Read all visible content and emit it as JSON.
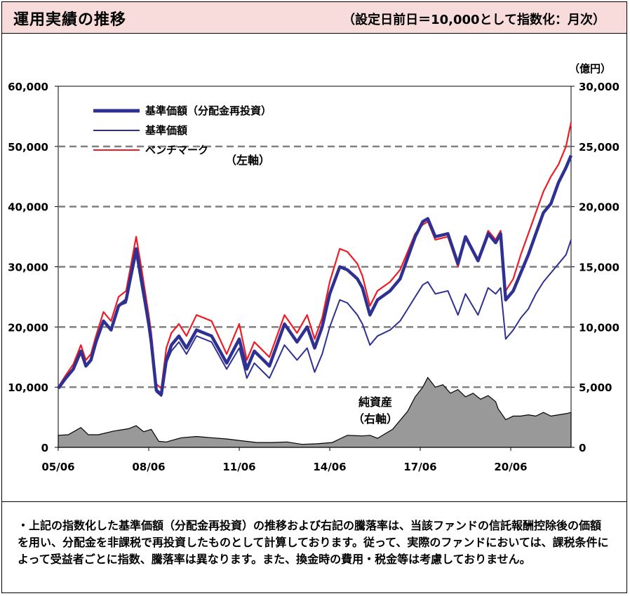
{
  "header": {
    "title": "運用実績の推移",
    "subtitle": "（設定日前日＝10,000として指数化：月次）"
  },
  "notes": {
    "text": "・上記の指数化した基準価額（分配金再投資）の推移および右記の騰落率は、当該ファンドの信託報酬控除後の価額を用い、分配金を非課税で再投資したものとして計算しております。従って、実際のファンドにおいては、課税条件によって受益者ごとに指数、騰落率は異なります。また、換金時の費用・税金等は考慮しておりません。"
  },
  "chart_data": {
    "type": "line",
    "title": "",
    "x_ticks": [
      "05/06",
      "08/06",
      "11/06",
      "14/06",
      "17/06",
      "20/06"
    ],
    "x_range": [
      2005.417,
      2022.417
    ],
    "left_axis": {
      "ylim": [
        0,
        60000
      ],
      "ticks": [
        "0",
        "10,000",
        "20,000",
        "30,000",
        "40,000",
        "50,000",
        "60,000"
      ],
      "annotation": "（左軸）"
    },
    "right_axis": {
      "unit": "（億円）",
      "ylim": [
        0,
        30000
      ],
      "ticks": [
        "0",
        "5,000",
        "10,000",
        "15,000",
        "20,000",
        "25,000",
        "30,000"
      ],
      "annotation_line1": "純資産",
      "annotation_line2": "（右軸）"
    },
    "gridlines": [
      10000,
      20000,
      30000,
      40000,
      50000
    ],
    "legend": {
      "placement": "top-left",
      "entries": [
        "基準価額（分配金再投資）",
        "基準価額",
        "ベンチマーク"
      ]
    },
    "colors": {
      "nav_reinvested": "#2e3192",
      "nav": "#2e3192",
      "benchmark": "#ee1c25",
      "net_assets_fill": "#999999"
    },
    "series": [
      {
        "name": "基準価額（分配金再投資）",
        "axis": "left",
        "x": [
          2005.417,
          2005.667,
          2005.917,
          2006.167,
          2006.333,
          2006.5,
          2006.667,
          2006.917,
          2007.167,
          2007.417,
          2007.667,
          2008.0,
          2008.167,
          2008.417,
          2008.5,
          2008.667,
          2008.833,
          2009.0,
          2009.167,
          2009.417,
          2009.667,
          2010.0,
          2010.5,
          2011.0,
          2011.417,
          2011.667,
          2011.917,
          2012.417,
          2012.917,
          2013.333,
          2013.667,
          2013.917,
          2014.167,
          2014.417,
          2014.75,
          2015.0,
          2015.333,
          2015.5,
          2015.75,
          2016.0,
          2016.417,
          2016.75,
          2017.0,
          2017.25,
          2017.5,
          2017.667,
          2017.917,
          2018.333,
          2018.667,
          2018.917,
          2019.333,
          2019.667,
          2019.917,
          2020.083,
          2020.25,
          2020.5,
          2020.75,
          2021.0,
          2021.25,
          2021.5,
          2021.75,
          2022.0,
          2022.25,
          2022.417
        ],
        "values": [
          9800,
          11500,
          13000,
          16000,
          13500,
          14500,
          17500,
          21000,
          19500,
          23500,
          24500,
          33000,
          28000,
          20500,
          17500,
          9500,
          8800,
          14500,
          17000,
          18500,
          16500,
          19500,
          18500,
          14000,
          18000,
          13000,
          16000,
          13500,
          20500,
          17500,
          20000,
          16500,
          20000,
          25500,
          30000,
          29500,
          28000,
          26500,
          22000,
          24500,
          26000,
          28000,
          31500,
          35000,
          37500,
          38000,
          35000,
          35500,
          30500,
          35000,
          31000,
          35500,
          34000,
          35500,
          24500,
          26000,
          29000,
          32000,
          35500,
          39000,
          40500,
          44000,
          46500,
          48500
        ]
      },
      {
        "name": "基準価額",
        "axis": "left",
        "x": [
          2005.417,
          2005.667,
          2005.917,
          2006.167,
          2006.333,
          2006.5,
          2006.667,
          2006.917,
          2007.167,
          2007.417,
          2007.667,
          2008.0,
          2008.167,
          2008.417,
          2008.5,
          2008.667,
          2008.833,
          2009.0,
          2009.167,
          2009.417,
          2009.667,
          2010.0,
          2010.5,
          2011.0,
          2011.417,
          2011.667,
          2011.917,
          2012.417,
          2012.917,
          2013.333,
          2013.667,
          2013.917,
          2014.167,
          2014.417,
          2014.75,
          2015.0,
          2015.333,
          2015.5,
          2015.75,
          2016.0,
          2016.417,
          2016.75,
          2017.0,
          2017.25,
          2017.5,
          2017.667,
          2017.917,
          2018.333,
          2018.667,
          2018.917,
          2019.333,
          2019.667,
          2019.917,
          2020.083,
          2020.25,
          2020.5,
          2020.75,
          2021.0,
          2021.25,
          2021.5,
          2021.75,
          2022.0,
          2022.25,
          2022.417
        ],
        "values": [
          9800,
          11500,
          13000,
          16000,
          13500,
          14500,
          17500,
          21000,
          19500,
          23500,
          24000,
          32000,
          27000,
          20000,
          17000,
          9200,
          8500,
          14000,
          16000,
          17500,
          15500,
          18500,
          17500,
          13000,
          16500,
          11500,
          14000,
          11500,
          17000,
          14500,
          16500,
          12500,
          15500,
          20000,
          24500,
          24000,
          22000,
          20500,
          17000,
          18500,
          19500,
          21000,
          23000,
          25000,
          27000,
          27500,
          25500,
          26000,
          22000,
          25500,
          22000,
          26500,
          25500,
          26500,
          18000,
          19500,
          21500,
          23000,
          25500,
          27500,
          29000,
          30500,
          32000,
          34500
        ]
      },
      {
        "name": "ベンチマーク",
        "axis": "left",
        "x": [
          2005.417,
          2005.667,
          2005.917,
          2006.167,
          2006.333,
          2006.5,
          2006.667,
          2006.917,
          2007.167,
          2007.417,
          2007.667,
          2008.0,
          2008.167,
          2008.417,
          2008.5,
          2008.667,
          2008.833,
          2009.0,
          2009.167,
          2009.417,
          2009.667,
          2010.0,
          2010.5,
          2011.0,
          2011.417,
          2011.667,
          2011.917,
          2012.417,
          2012.917,
          2013.333,
          2013.667,
          2013.917,
          2014.167,
          2014.417,
          2014.75,
          2015.0,
          2015.333,
          2015.5,
          2015.75,
          2016.0,
          2016.417,
          2016.75,
          2017.0,
          2017.25,
          2017.5,
          2017.667,
          2017.917,
          2018.333,
          2018.667,
          2018.917,
          2019.333,
          2019.667,
          2019.917,
          2020.083,
          2020.25,
          2020.5,
          2020.75,
          2021.0,
          2021.25,
          2021.5,
          2021.75,
          2022.0,
          2022.25,
          2022.417
        ],
        "values": [
          10000,
          12000,
          13800,
          17000,
          14500,
          15500,
          18500,
          22500,
          21000,
          25000,
          26000,
          35000,
          30000,
          22000,
          19000,
          10500,
          9800,
          16500,
          19000,
          20500,
          18500,
          22000,
          21000,
          15500,
          20500,
          14500,
          17500,
          15000,
          22000,
          19000,
          22000,
          18000,
          21500,
          27500,
          33000,
          32500,
          30500,
          28500,
          23500,
          26000,
          27500,
          29500,
          32500,
          35500,
          37000,
          37500,
          34500,
          35000,
          30000,
          35000,
          31000,
          36000,
          34500,
          36000,
          26000,
          28000,
          32000,
          35500,
          39000,
          42500,
          45000,
          47000,
          50000,
          54000
        ]
      },
      {
        "name": "純資産",
        "axis": "right",
        "x": [
          2005.417,
          2005.75,
          2006.167,
          2006.417,
          2006.75,
          2007.25,
          2007.75,
          2008.0,
          2008.25,
          2008.5,
          2008.75,
          2009.0,
          2009.5,
          2010.0,
          2010.5,
          2011.0,
          2011.5,
          2012.0,
          2012.5,
          2013.0,
          2013.5,
          2014.0,
          2014.5,
          2014.75,
          2015.0,
          2015.5,
          2015.75,
          2016.0,
          2016.5,
          2017.0,
          2017.25,
          2017.5,
          2017.667,
          2017.917,
          2018.167,
          2018.417,
          2018.667,
          2018.917,
          2019.167,
          2019.417,
          2019.667,
          2019.917,
          2020.0,
          2020.25,
          2020.5,
          2020.75,
          2021.0,
          2021.25,
          2021.5,
          2021.75,
          2022.0,
          2022.25,
          2022.417
        ],
        "values": [
          1000,
          1050,
          1650,
          1050,
          1050,
          1350,
          1550,
          1800,
          1300,
          1500,
          500,
          450,
          800,
          900,
          800,
          700,
          550,
          400,
          400,
          450,
          250,
          300,
          400,
          700,
          1000,
          950,
          1000,
          750,
          1500,
          3000,
          4200,
          5000,
          5800,
          5000,
          5200,
          4500,
          4800,
          4200,
          4500,
          4000,
          4300,
          3800,
          3200,
          2300,
          2600,
          2600,
          2700,
          2600,
          2900,
          2600,
          2700,
          2800,
          2900
        ]
      }
    ]
  }
}
